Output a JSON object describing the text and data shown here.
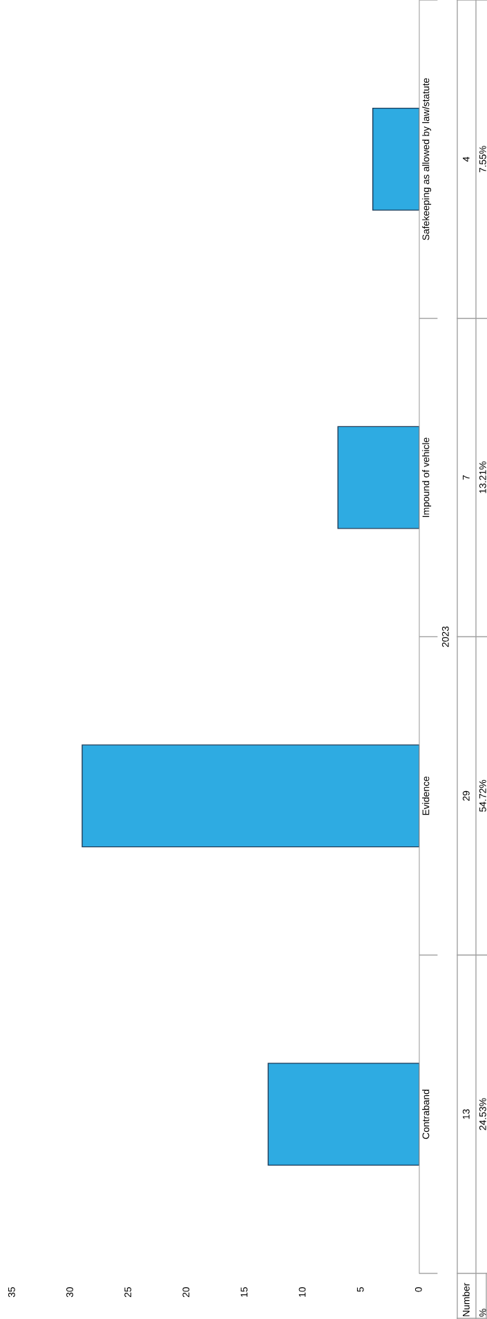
{
  "chart_data": {
    "type": "bar",
    "orientation": "horizontal",
    "categories": [
      "Safekeeping as allowed by law/statute",
      "Impound of vehicle",
      "Evidence",
      "Contraband"
    ],
    "values": [
      4,
      7,
      29,
      13
    ],
    "color": "#2eabe2",
    "xlim": [
      35,
      0
    ],
    "xticks": [
      0,
      5,
      10,
      15,
      20,
      25,
      30,
      35
    ],
    "ylabel": "2023",
    "data_labels": true,
    "grid": false,
    "legend": false,
    "annotations": [
      "Number",
      "%",
      "7.55%",
      "13.21%",
      "54.72%",
      "24.53%"
    ]
  }
}
